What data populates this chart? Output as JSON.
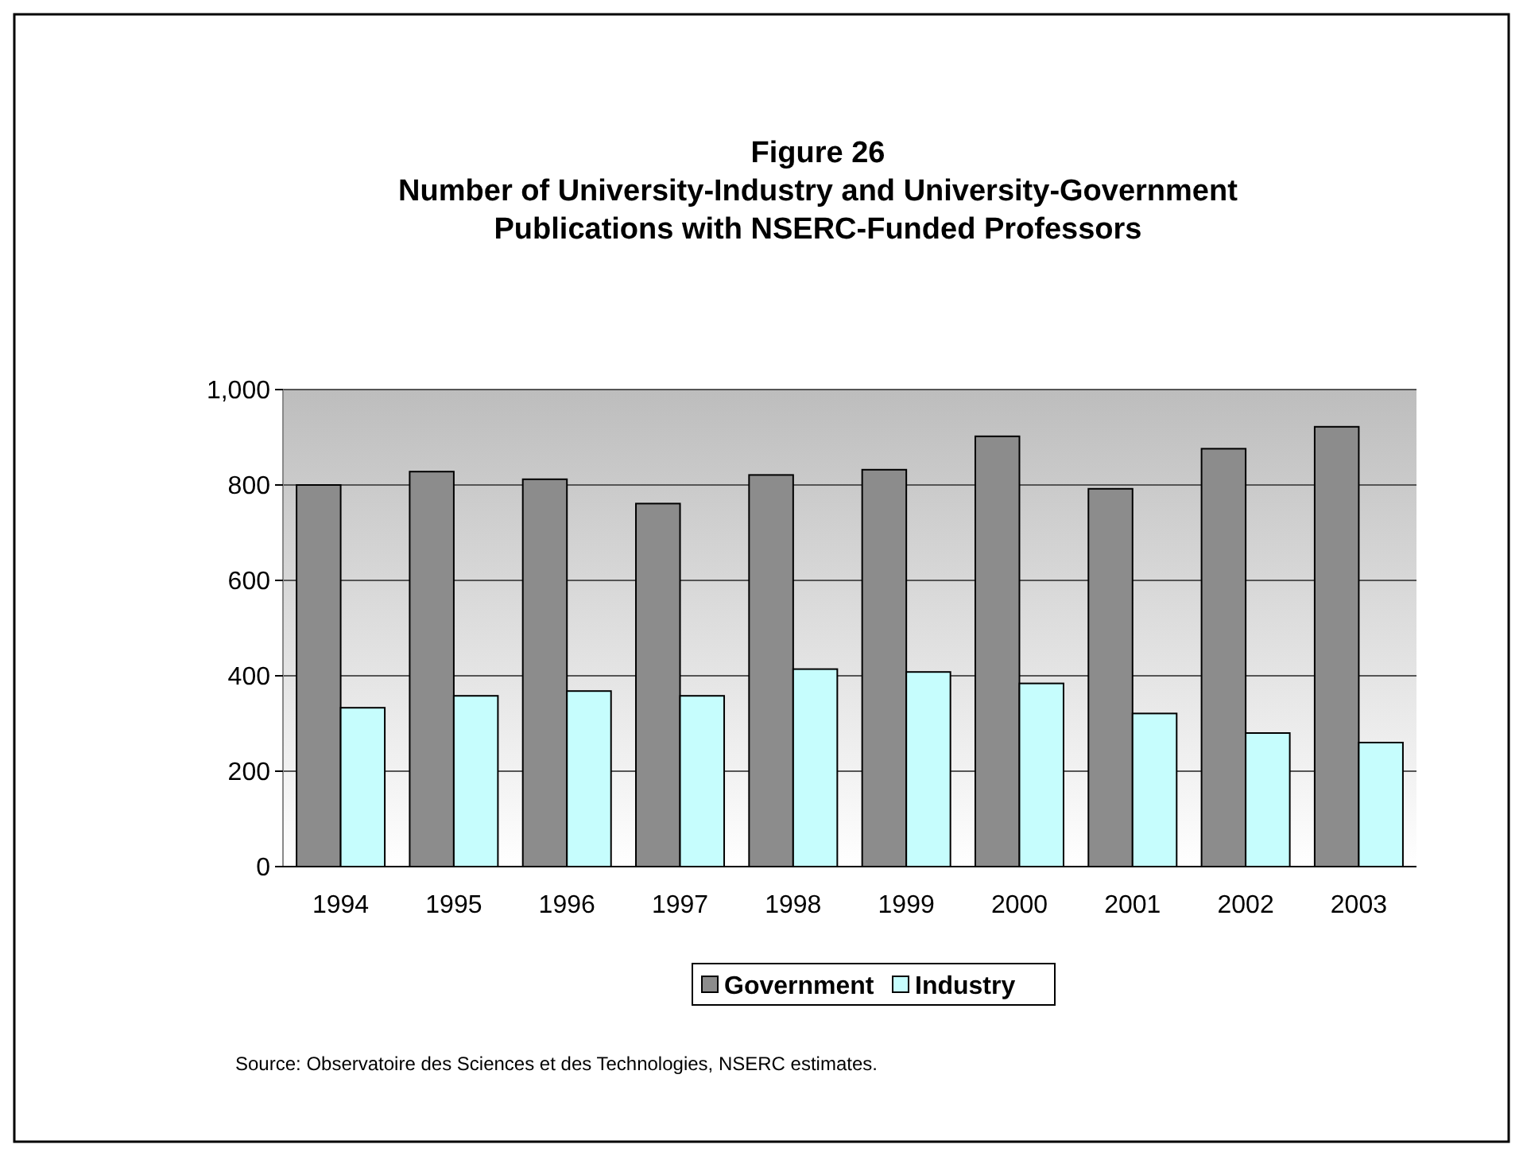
{
  "chart_data": {
    "type": "bar",
    "title": "Figure 26\nNumber of University-Industry and University-Government\nPublications with NSERC-Funded Professors",
    "categories": [
      "1994",
      "1995",
      "1996",
      "1997",
      "1998",
      "1999",
      "2000",
      "2001",
      "2002",
      "2003"
    ],
    "series": [
      {
        "name": "Government",
        "color": "#8c8c8c",
        "values": [
          800,
          828,
          812,
          761,
          821,
          832,
          902,
          792,
          876,
          922
        ]
      },
      {
        "name": "Industry",
        "color": "#c6fdfd",
        "values": [
          333,
          358,
          368,
          358,
          414,
          408,
          384,
          321,
          280,
          260
        ]
      }
    ],
    "ylim": [
      0,
      1000
    ],
    "yticks": [
      0,
      200,
      400,
      600,
      800,
      "1,000"
    ],
    "grid": "y",
    "legend": "bottom",
    "annotations": [
      "Source: Observatoire des Sciences et des Technologies, NSERC estimates."
    ]
  }
}
